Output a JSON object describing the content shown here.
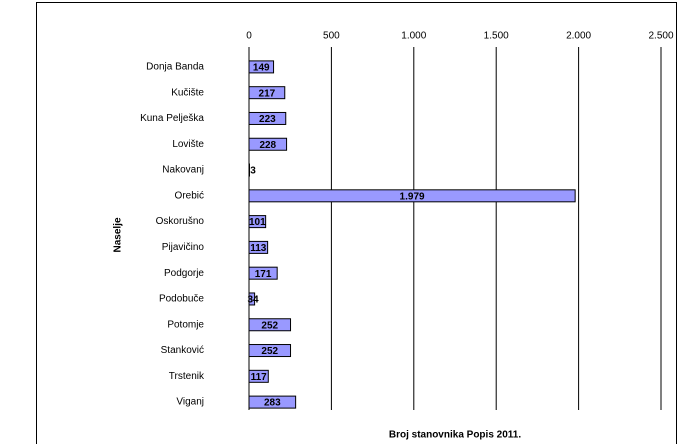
{
  "chart_data": {
    "type": "bar",
    "orientation": "horizontal",
    "x_label": "Broj stanovnika Popis 2011.",
    "y_label": "Naselje",
    "categories": [
      "Donja Banda",
      "Kučište",
      "Kuna Pelješka",
      "Lovište",
      "Nakovanj",
      "Orebić",
      "Oskorušno",
      "Pijavičino",
      "Podgorje",
      "Podobuče",
      "Potomje",
      "Stanković",
      "Trstenik",
      "Viganj"
    ],
    "values": [
      149,
      217,
      223,
      228,
      3,
      1979,
      101,
      113,
      171,
      34,
      252,
      252,
      117,
      283
    ],
    "value_labels": [
      "149",
      "217",
      "223",
      "228",
      "3",
      "1.979",
      "101",
      "113",
      "171",
      "34",
      "252",
      "252",
      "117",
      "283"
    ],
    "color": "#9999ff",
    "xlim": [
      0,
      2500
    ],
    "xticks": [
      0,
      500,
      {
        "value": 1000,
        "label": "1.000"
      },
      {
        "value": 1500,
        "label": "1.500"
      },
      {
        "value": 2000,
        "label": "2.000"
      },
      {
        "value": 2500,
        "label": "2.500"
      }
    ],
    "grid": true
  }
}
